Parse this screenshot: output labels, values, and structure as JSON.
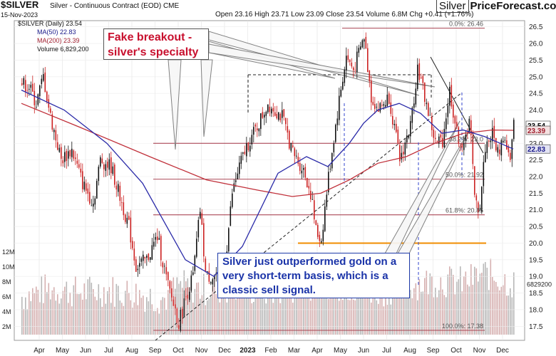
{
  "header": {
    "symbol": "$SILVER",
    "description": "Silver - Continuous Contract (EOD)  CME",
    "date": "15-Nov-2023",
    "ohlc": "Open 23.16  High 23.71  Low 23.09  Close 23.54  Volume 6.8M  Chg +0.41 (+1.76%)",
    "brand_box": "Silver",
    "brand_text": "PriceForecast.com"
  },
  "legend": {
    "price": "$SILVER (Daily) 23.54",
    "ma50": "MA(50) 22.83",
    "ma200": "MA(200) 23.39",
    "volume": "Volume 6,829,200"
  },
  "annotations": {
    "breakout": "Fake breakout - silver's specialty",
    "signal": "Silver just outperformed gold on a very short-term basis, which is a classic sell signal."
  },
  "colors": {
    "bear_candle": "#cc2222",
    "bull_candle": "#111111",
    "ma50": "#2a2aa8",
    "ma200": "#c0303a",
    "fib": "#a03040",
    "support": "#f08c00",
    "volume": "#c8c8c8"
  },
  "chart_data": {
    "type": "line",
    "title": "$SILVER Silver - Continuous Contract (EOD)",
    "x_ticks": [
      "Apr",
      "May",
      "Jun",
      "Jul",
      "Aug",
      "Sep",
      "Oct",
      "Nov",
      "Dec",
      "2023",
      "Feb",
      "Mar",
      "Apr",
      "May",
      "Jun",
      "Jul",
      "Aug",
      "Sep",
      "Oct",
      "Nov",
      "Dec"
    ],
    "y_ticks": [
      "26.5",
      "26.0",
      "25.5",
      "25.0",
      "24.5",
      "24.0",
      "23.5",
      "23.0",
      "22.5",
      "22.0",
      "21.5",
      "21.0",
      "20.5",
      "20.0",
      "19.5",
      "19.0",
      "18.5",
      "18.0",
      "17.5"
    ],
    "ylim": [
      17.25,
      26.6
    ],
    "volume_ticks": [
      "12M",
      "10M",
      "8M",
      "6M",
      "4M",
      "2M"
    ],
    "last_price_label": "23.54",
    "ma_label": "23.39",
    "ma50_label": "22.83",
    "volume_label": "6829200",
    "fib_levels": [
      {
        "label": "0.0%: 26.46",
        "value": 26.46
      },
      {
        "label": "38.2%: 23.0",
        "value": 23.0
      },
      {
        "label": "50.0%: 21.92",
        "value": 21.92
      },
      {
        "label": "61.8%: 20.85",
        "value": 20.85
      },
      {
        "label": "100.0%: 17.38",
        "value": 17.38
      }
    ],
    "support_line": 20.0,
    "price_series": [
      [
        0,
        24.8
      ],
      [
        10,
        24.7
      ],
      [
        20,
        24.2
      ],
      [
        30,
        25.0
      ],
      [
        40,
        23.8
      ],
      [
        55,
        22.5
      ],
      [
        70,
        22.8
      ],
      [
        85,
        21.8
      ],
      [
        100,
        21.2
      ],
      [
        110,
        22.5
      ],
      [
        125,
        22.3
      ],
      [
        140,
        21.2
      ],
      [
        150,
        20.5
      ],
      [
        160,
        19.3
      ],
      [
        175,
        19.5
      ],
      [
        190,
        20.2
      ],
      [
        205,
        18.7
      ],
      [
        215,
        18.0
      ],
      [
        220,
        17.6
      ],
      [
        230,
        18.4
      ],
      [
        240,
        19.0
      ],
      [
        250,
        21.0
      ],
      [
        258,
        19.0
      ],
      [
        270,
        19.0
      ],
      [
        285,
        19.4
      ],
      [
        295,
        21.5
      ],
      [
        305,
        22.3
      ],
      [
        315,
        22.9
      ],
      [
        330,
        23.5
      ],
      [
        345,
        24.2
      ],
      [
        355,
        24.0
      ],
      [
        365,
        23.8
      ],
      [
        380,
        22.7
      ],
      [
        395,
        22.2
      ],
      [
        405,
        21.5
      ],
      [
        413,
        20.3
      ],
      [
        420,
        20.1
      ],
      [
        430,
        22.0
      ],
      [
        445,
        24.3
      ],
      [
        455,
        25.6
      ],
      [
        465,
        25.2
      ],
      [
        480,
        26.2
      ],
      [
        490,
        24.4
      ],
      [
        500,
        24.0
      ],
      [
        515,
        24.4
      ],
      [
        530,
        22.5
      ],
      [
        545,
        23.5
      ],
      [
        555,
        25.3
      ],
      [
        565,
        24.4
      ],
      [
        580,
        23.0
      ],
      [
        590,
        23.1
      ],
      [
        600,
        24.6
      ],
      [
        610,
        23.3
      ],
      [
        620,
        22.8
      ],
      [
        628,
        23.9
      ],
      [
        635,
        21.3
      ],
      [
        642,
        21.0
      ],
      [
        650,
        22.9
      ],
      [
        660,
        23.3
      ],
      [
        668,
        22.7
      ],
      [
        675,
        23.2
      ],
      [
        680,
        22.9
      ],
      [
        685,
        22.4
      ],
      [
        690,
        23.54
      ]
    ],
    "ma50_series": [
      [
        0,
        24.6
      ],
      [
        60,
        24.0
      ],
      [
        120,
        23.0
      ],
      [
        170,
        21.8
      ],
      [
        230,
        19.5
      ],
      [
        270,
        19.0
      ],
      [
        310,
        19.9
      ],
      [
        360,
        22.1
      ],
      [
        400,
        22.6
      ],
      [
        430,
        22.3
      ],
      [
        460,
        23.0
      ],
      [
        480,
        23.6
      ],
      [
        500,
        24.0
      ],
      [
        530,
        24.2
      ],
      [
        560,
        23.9
      ],
      [
        590,
        23.3
      ],
      [
        620,
        23.4
      ],
      [
        650,
        23.2
      ],
      [
        690,
        22.83
      ]
    ],
    "ma200_series": [
      [
        0,
        24.2
      ],
      [
        80,
        23.5
      ],
      [
        180,
        22.6
      ],
      [
        260,
        21.9
      ],
      [
        330,
        21.6
      ],
      [
        380,
        21.4
      ],
      [
        420,
        21.5
      ],
      [
        460,
        21.9
      ],
      [
        500,
        22.4
      ],
      [
        540,
        22.6
      ],
      [
        580,
        23.0
      ],
      [
        620,
        23.3
      ],
      [
        660,
        23.4
      ],
      [
        690,
        23.39
      ]
    ],
    "volume_series": [
      [
        0,
        5.1
      ],
      [
        40,
        6.2
      ],
      [
        80,
        5.7
      ],
      [
        120,
        6.0
      ],
      [
        160,
        5.5
      ],
      [
        200,
        4.8
      ],
      [
        220,
        6.6
      ],
      [
        260,
        6.0
      ],
      [
        300,
        6.4
      ],
      [
        340,
        5.8
      ],
      [
        380,
        6.3
      ],
      [
        420,
        7.1
      ],
      [
        460,
        6.5
      ],
      [
        500,
        5.9
      ],
      [
        540,
        6.6
      ],
      [
        580,
        7.2
      ],
      [
        620,
        7.0
      ],
      [
        650,
        8.2
      ],
      [
        690,
        6.8
      ]
    ]
  }
}
